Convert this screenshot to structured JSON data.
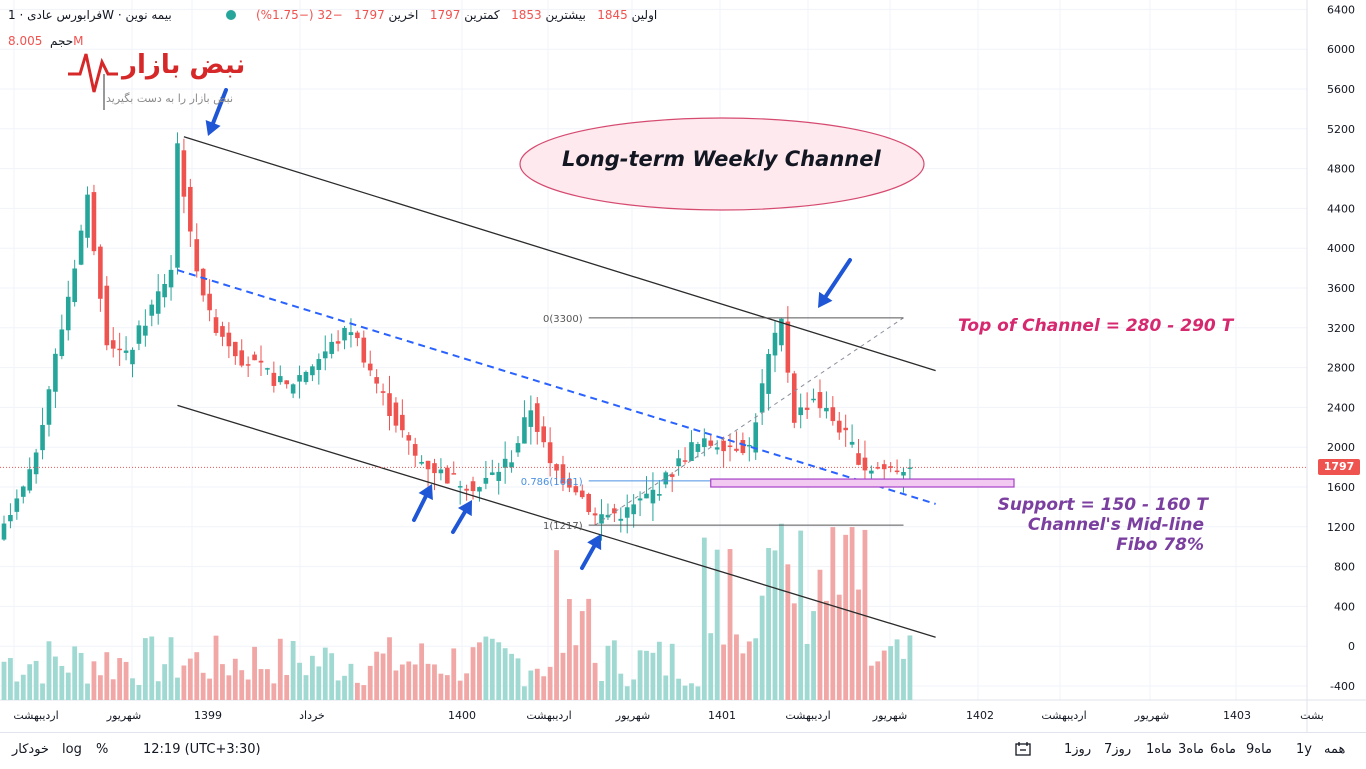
{
  "header": {
    "symbol": "بیمه نوین",
    "interval": "1W",
    "exchange": "فرابورس عادی",
    "open_label": "اولین",
    "open_value": "1845",
    "high_label": "بیشترین",
    "high_value": "1853",
    "low_label": "کمترین",
    "low_value": "1797",
    "close_label": "اخرین",
    "close_value": "1797",
    "change": "−32 (−1.75%)",
    "volume_label": "حجم",
    "volume_value": "8.005M"
  },
  "logo": {
    "brand": "نبض بازار",
    "tagline": "نبض بازار را به دست بگیرید"
  },
  "price_tag": "1797",
  "annotations": {
    "channel_title": "Long-term Weekly Channel",
    "top_channel": "Top of Channel = 280 - 290 T",
    "support_1": "Support = 150 - 160 T",
    "support_2": "Channel's Mid-line",
    "support_3": "Fibo 78%",
    "fib_0": "0(3300)",
    "fib_786": "0.786(1661)",
    "fib_1": "1(1217)"
  },
  "colors": {
    "up": "#26a69a",
    "down": "#ef5350",
    "vol_up": "#9fd9d2",
    "vol_down": "#f0a7a5",
    "channel": "#2b2b2b",
    "midline": "#2962ff",
    "top_text": "#d6286f",
    "support_text": "#7b3fa0",
    "zone_fill": "#f2c9f0",
    "zone_stroke": "#a641c7"
  },
  "chart_data": {
    "type": "candlestick",
    "title": "بیمه نوین · 1W · فرابورس عادی",
    "y_axis": {
      "ticks": [
        6400,
        6000,
        5600,
        5200,
        4800,
        4400,
        4000,
        3600,
        3200,
        2800,
        2400,
        2000,
        1600,
        1200,
        800,
        400,
        0,
        -400
      ],
      "range": [
        -600,
        6500
      ]
    },
    "x_axis": {
      "tick_labels": [
        "اردیبهشت",
        "شهریور",
        "1399",
        "خرداد",
        "1400",
        "اردیبهشت",
        "شهریور",
        "1401",
        "اردیبهشت",
        "شهریور",
        "1402",
        "اردیبهشت",
        "شهریور",
        "1403",
        "بشت"
      ]
    },
    "last_price": 1797,
    "peak_high": 5100,
    "fibonacci": [
      {
        "level": 0,
        "price": 3300
      },
      {
        "level": 0.786,
        "price": 1661
      },
      {
        "level": 1,
        "price": 1217
      }
    ],
    "support_zone": [
      1600,
      1680
    ],
    "channel_upper": [
      {
        "week": 28,
        "price": 5120
      },
      {
        "week": 145,
        "price": 2770
      }
    ],
    "channel_lower": [
      {
        "week": 27,
        "price": 2420
      },
      {
        "week": 145,
        "price": 90
      }
    ],
    "channel_mid": [
      {
        "week": 27,
        "price": 3780
      },
      {
        "week": 145,
        "price": 1430
      }
    ],
    "price_path": [
      [
        0,
        1050
      ],
      [
        5,
        1700
      ],
      [
        10,
        3200
      ],
      [
        14,
        4500
      ],
      [
        17,
        3100
      ],
      [
        20,
        2900
      ],
      [
        24,
        3400
      ],
      [
        27,
        3800
      ],
      [
        28,
        5050
      ],
      [
        30,
        4100
      ],
      [
        33,
        3300
      ],
      [
        38,
        2900
      ],
      [
        45,
        2600
      ],
      [
        50,
        2900
      ],
      [
        55,
        3200
      ],
      [
        60,
        2500
      ],
      [
        65,
        1900
      ],
      [
        70,
        1700
      ],
      [
        75,
        1600
      ],
      [
        80,
        1900
      ],
      [
        83,
        2400
      ],
      [
        86,
        1800
      ],
      [
        90,
        1600
      ],
      [
        93,
        1300
      ],
      [
        98,
        1350
      ],
      [
        103,
        1600
      ],
      [
        108,
        2000
      ],
      [
        112,
        2050
      ],
      [
        117,
        2000
      ],
      [
        120,
        2900
      ],
      [
        122,
        3250
      ],
      [
        124,
        2300
      ],
      [
        127,
        2500
      ],
      [
        131,
        2200
      ],
      [
        135,
        1800
      ],
      [
        138,
        1780
      ],
      [
        141,
        1797
      ]
    ],
    "volume_max": 1200
  },
  "bottom": {
    "ranges": [
      "1روز",
      "7روز",
      "1ماه",
      "3ماه",
      "6ماه",
      "9ماه",
      "1y",
      "همه"
    ],
    "time": "12:19 (UTC+3:30)",
    "percent": "%",
    "log": "log",
    "auto": "خودکار"
  }
}
